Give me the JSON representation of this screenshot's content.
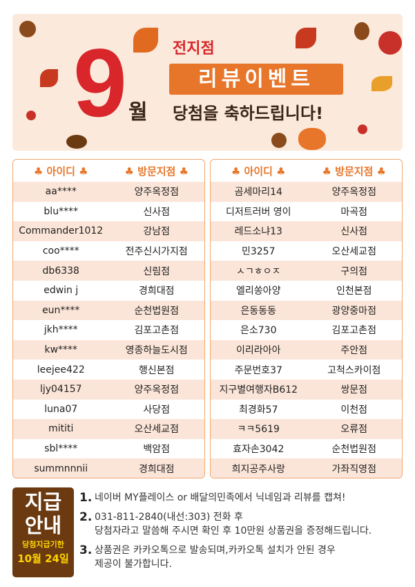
{
  "banner": {
    "month": "9",
    "month_suffix": "월",
    "branch": "전지점",
    "event": "리뷰이벤트",
    "congrats": "당첨을 축하드립니다!"
  },
  "table_headers": {
    "id": "♣ 아이디 ♣",
    "store": "♣ 방문지점 ♣"
  },
  "left_rows": [
    [
      "aa****",
      "양주옥정점"
    ],
    [
      "blu****",
      "신사점"
    ],
    [
      "Commander1012",
      "강남점"
    ],
    [
      "coo****",
      "전주신시가지점"
    ],
    [
      "db6338",
      "신림점"
    ],
    [
      "edwin j",
      "경희대점"
    ],
    [
      "eun****",
      "순천법원점"
    ],
    [
      "jkh****",
      "김포고촌점"
    ],
    [
      "kw****",
      "영종하늘도시점"
    ],
    [
      "leejee422",
      "행신본점"
    ],
    [
      "ljy04157",
      "양주옥정점"
    ],
    [
      "luna07",
      "사당점"
    ],
    [
      "mititi",
      "오산세교점"
    ],
    [
      "sbl****",
      "백암점"
    ],
    [
      "summnnnii",
      "경희대점"
    ]
  ],
  "right_rows": [
    [
      "곰세마리14",
      "양주옥정점"
    ],
    [
      "디저트러버 영이",
      "마곡점"
    ],
    [
      "레드소냐13",
      "신사점"
    ],
    [
      "민3257",
      "오산세교점"
    ],
    [
      "ㅅㄱㅎㅇㅈ",
      "구의점"
    ],
    [
      "엘리쏭아양",
      "인천본점"
    ],
    [
      "은동동동",
      "광양중마점"
    ],
    [
      "은소730",
      "김포고촌점"
    ],
    [
      "이리라아아",
      "주안점"
    ],
    [
      "주문번호37",
      "고척스카이점"
    ],
    [
      "지구별여행자B612",
      "쌍문점"
    ],
    [
      "최경화57",
      "이천점"
    ],
    [
      "ㅋㅋ5619",
      "오류점"
    ],
    [
      "효자손3042",
      "순천법원점"
    ],
    [
      "희지공주사랑",
      "가좌직영점"
    ]
  ],
  "guide": {
    "title1": "지급",
    "title2": "안내",
    "deadline_label": "당첨지급기한",
    "deadline": "10월 24일"
  },
  "notes": [
    {
      "num": "1.",
      "lines": [
        "네이버 MY플레이스 or 배달의민족에서 닉네임과 리뷰를 캡쳐!"
      ]
    },
    {
      "num": "2.",
      "lines": [
        "031-811-2840(내선:303) 전화 후",
        "당첨자라고 말씀해 주시면 확인 후 10만원 상품권을 증정해드립니다."
      ]
    },
    {
      "num": "3.",
      "lines": [
        "상품권은 카카오톡으로 발송되며,카카오톡 설치가 안된 경우",
        "제공이 불가합니다."
      ]
    }
  ],
  "colors": {
    "accent": "#e8762a",
    "red": "#d8262a",
    "brown": "#6b3a10",
    "row_alt": "#fbe5d8",
    "banner_bg": "#fbe9dc",
    "deadline": "#ffd400"
  }
}
